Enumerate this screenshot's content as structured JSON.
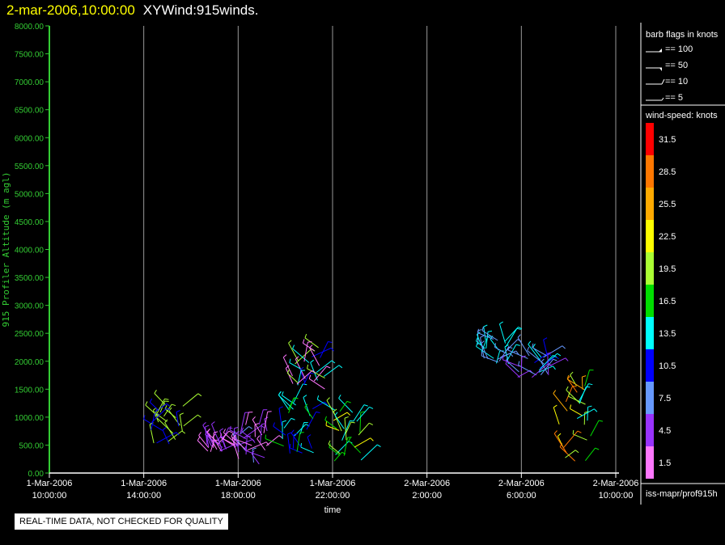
{
  "header": {
    "date_label": "2-mar-2006,10:00:00",
    "plot_name": "XYWind:915winds."
  },
  "footer": {
    "quality_notice": "REAL-TIME DATA, NOT CHECKED FOR QUALITY",
    "source_label": "iss-mapr/prof915h"
  },
  "barb_legend": {
    "title": "barb flags in knots",
    "items": [
      {
        "label": "== 100",
        "flag": "pennant"
      },
      {
        "label": "== 50",
        "flag": "half-pennant"
      },
      {
        "label": "== 10",
        "flag": "full-barb"
      },
      {
        "label": "== 5",
        "flag": "half-barb"
      }
    ]
  },
  "color_legend": {
    "title": "wind-speed: knots",
    "bins": [
      {
        "label": "31.5",
        "color": "#ff0000"
      },
      {
        "label": "28.5",
        "color": "#ff7700"
      },
      {
        "label": "25.5",
        "color": "#ffaa00"
      },
      {
        "label": "22.5",
        "color": "#ffff00"
      },
      {
        "label": "19.5",
        "color": "#aaff33"
      },
      {
        "label": "16.5",
        "color": "#00dd00"
      },
      {
        "label": "13.5",
        "color": "#00ffff"
      },
      {
        "label": "10.5",
        "color": "#0000ff"
      },
      {
        "label": "7.5",
        "color": "#6699ff"
      },
      {
        "label": "4.5",
        "color": "#9933ff"
      },
      {
        "label": "1.5",
        "color": "#ff77ff"
      }
    ]
  },
  "chart_data": {
    "type": "scatter",
    "title": "XYWind:915winds.",
    "xlabel": "time",
    "ylabel": "915 Profiler Altitude (m agl)",
    "ylim": [
      0,
      8000
    ],
    "xlim": [
      0,
      24
    ],
    "y_ticks": [
      "0.00",
      "500.00",
      "1000.00",
      "1500.00",
      "2000.00",
      "2500.00",
      "3000.00",
      "3500.00",
      "4000.00",
      "4500.00",
      "5000.00",
      "5500.00",
      "6000.00",
      "6500.00",
      "7000.00",
      "7500.00",
      "8000.00"
    ],
    "x_ticks": [
      {
        "hour": 0,
        "date": "1-Mar-2006",
        "time": "10:00:00"
      },
      {
        "hour": 4,
        "date": "1-Mar-2006",
        "time": "14:00:00"
      },
      {
        "hour": 8,
        "date": "1-Mar-2006",
        "time": "18:00:00"
      },
      {
        "hour": 12,
        "date": "1-Mar-2006",
        "time": "22:00:00"
      },
      {
        "hour": 16,
        "date": "2-Mar-2006",
        "time": "2:00:00"
      },
      {
        "hour": 20,
        "date": "2-Mar-2006",
        "time": "6:00:00"
      },
      {
        "hour": 24,
        "date": "2-Mar-2006",
        "time": "10:00:00"
      }
    ],
    "grid_vertical": true,
    "clusters": [
      {
        "hour": 5.0,
        "alt_min": 500,
        "alt_max": 1250,
        "speed_bins": [
          "#0000ff",
          "#aaff33",
          "#aaff33"
        ]
      },
      {
        "hour": 7.3,
        "alt_min": 380,
        "alt_max": 560,
        "speed_bins": [
          "#ff77ff",
          "#9933ff"
        ]
      },
      {
        "hour": 8.6,
        "alt_min": 150,
        "alt_max": 900,
        "speed_bins": [
          "#ff77ff",
          "#9933ff",
          "#6699ff",
          "#ff77ff",
          "#9933ff"
        ]
      },
      {
        "hour": 10.5,
        "alt_min": 350,
        "alt_max": 1350,
        "speed_bins": [
          "#0000ff",
          "#00ffff",
          "#00dd00"
        ]
      },
      {
        "hour": 11.0,
        "alt_min": 1500,
        "alt_max": 2250,
        "speed_bins": [
          "#0000ff",
          "#aaff33",
          "#00ffff",
          "#ff77ff"
        ]
      },
      {
        "hour": 12.6,
        "alt_min": 200,
        "alt_max": 1150,
        "speed_bins": [
          "#00ffff",
          "#00dd00",
          "#aaff33",
          "#ffff00"
        ]
      },
      {
        "hour": 18.8,
        "alt_min": 1950,
        "alt_max": 2400,
        "speed_bins": [
          "#00ffff",
          "#6699ff"
        ]
      },
      {
        "hour": 20.5,
        "alt_min": 1700,
        "alt_max": 2200,
        "speed_bins": [
          "#6699ff",
          "#0000ff",
          "#00ffff",
          "#9933ff"
        ]
      },
      {
        "hour": 22.3,
        "alt_min": 200,
        "alt_max": 1600,
        "speed_bins": [
          "#aaff33",
          "#ffff00",
          "#ffaa00",
          "#ff7700",
          "#00dd00",
          "#00ffff"
        ]
      }
    ]
  }
}
